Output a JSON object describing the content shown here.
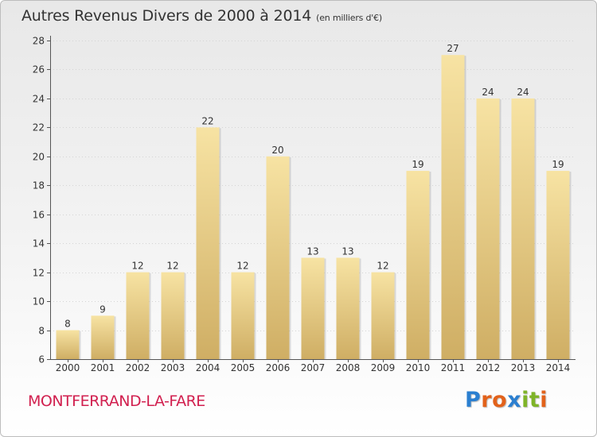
{
  "title": "Autres Revenus Divers de 2000 à 2014",
  "subtitle": "(en milliers d'€)",
  "commune": "MONTFERRAND-LA-FARE",
  "logo": {
    "letters": [
      "P",
      "r",
      "o",
      "x",
      "i",
      "t",
      "i"
    ],
    "colors": [
      "#2b7fd0",
      "#e2621b",
      "#e2621b",
      "#2b7fd0",
      "#7fb428",
      "#7fb428",
      "#e2621b"
    ]
  },
  "colors": {
    "bar_light": "#f7e3a3",
    "bar_dark": "#cfae64",
    "commune_text": "#d1204f"
  },
  "chart_data": {
    "type": "bar",
    "categories": [
      "2000",
      "2001",
      "2002",
      "2003",
      "2004",
      "2005",
      "2006",
      "2007",
      "2008",
      "2009",
      "2010",
      "2011",
      "2012",
      "2013",
      "2014"
    ],
    "values": [
      8,
      9,
      12,
      12,
      22,
      12,
      20,
      13,
      13,
      12,
      19,
      27,
      24,
      24,
      19
    ],
    "ylim": [
      6,
      28
    ],
    "yticks": [
      6,
      8,
      10,
      12,
      14,
      16,
      18,
      20,
      22,
      24,
      26,
      28
    ],
    "grid": true,
    "legend": "none"
  }
}
